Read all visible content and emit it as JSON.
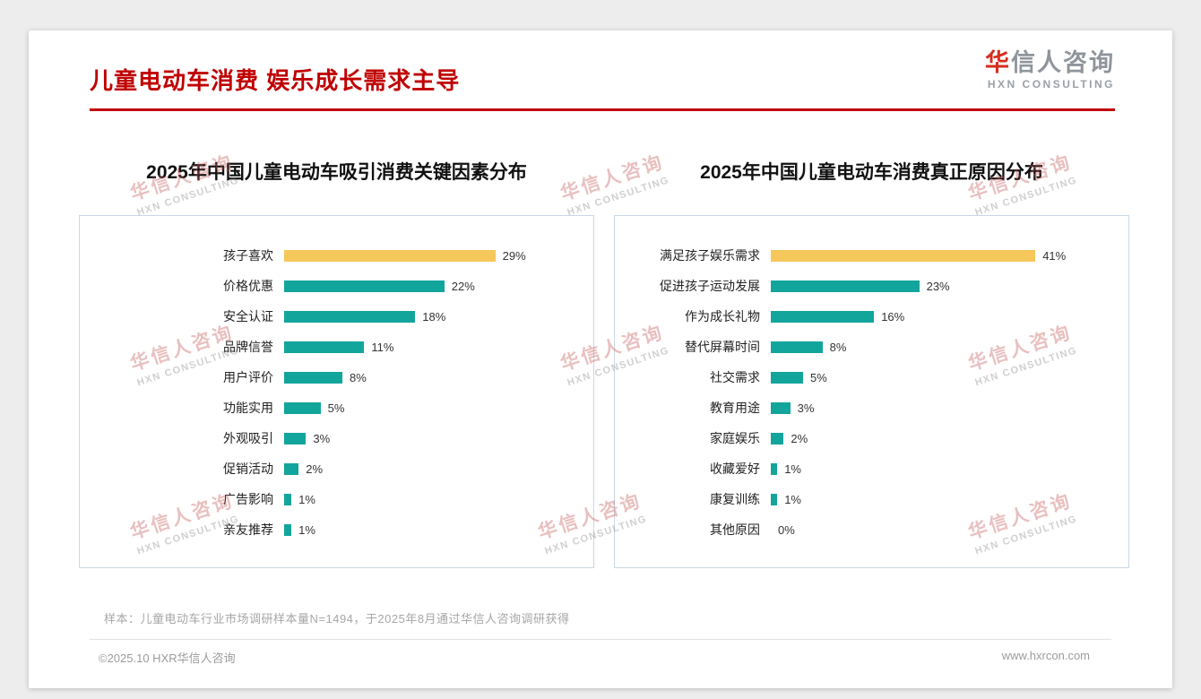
{
  "page": {
    "title": "儿童电动车消费 娱乐成长需求主导",
    "logo": {
      "brand_highlight": "华",
      "brand_rest": "信人咨询",
      "subtitle": "HXN CONSULTING"
    },
    "note": "样本：儿童电动车行业市场调研样本量N=1494，于2025年8月通过华信人咨询调研获得",
    "footer_left": "©2025.10 HXR华信人咨询",
    "footer_right": "www.hxrcon.com",
    "watermark": {
      "line1": "华信人咨询",
      "line2": "HXN CONSULTING"
    }
  },
  "colors": {
    "accent_red": "#C00000",
    "bar_teal": "#12A59C",
    "bar_gold": "#F6C75A"
  },
  "chart_data": [
    {
      "type": "bar",
      "orientation": "horizontal",
      "title": "2025年中国儿童电动车吸引消费关键因素分布",
      "categories": [
        "孩子喜欢",
        "价格优惠",
        "安全认证",
        "品牌信誉",
        "用户评价",
        "功能实用",
        "外观吸引",
        "促销活动",
        "广告影响",
        "亲友推荐"
      ],
      "values": [
        29,
        22,
        18,
        11,
        8,
        5,
        3,
        2,
        1,
        1
      ],
      "value_labels": [
        "29%",
        "22%",
        "18%",
        "11%",
        "8%",
        "5%",
        "3%",
        "2%",
        "1%",
        "1%"
      ],
      "unit": "%",
      "xlim": [
        0,
        32
      ],
      "highlight_index": 0,
      "highlight_color": "#F6C75A",
      "bar_color": "#12A59C",
      "grid": false,
      "legend": false
    },
    {
      "type": "bar",
      "orientation": "horizontal",
      "title": "2025年中国儿童电动车消费真正原因分布",
      "categories": [
        "满足孩子娱乐需求",
        "促进孩子运动发展",
        "作为成长礼物",
        "替代屏幕时间",
        "社交需求",
        "教育用途",
        "家庭娱乐",
        "收藏爱好",
        "康复训练",
        "其他原因"
      ],
      "values": [
        41,
        23,
        16,
        8,
        5,
        3,
        2,
        1,
        1,
        0
      ],
      "value_labels": [
        "41%",
        "23%",
        "16%",
        "8%",
        "5%",
        "3%",
        "2%",
        "1%",
        "1%",
        "0%"
      ],
      "unit": "%",
      "xlim": [
        0,
        45
      ],
      "highlight_index": 0,
      "highlight_color": "#F6C75A",
      "bar_color": "#12A59C",
      "grid": false,
      "legend": false
    }
  ]
}
